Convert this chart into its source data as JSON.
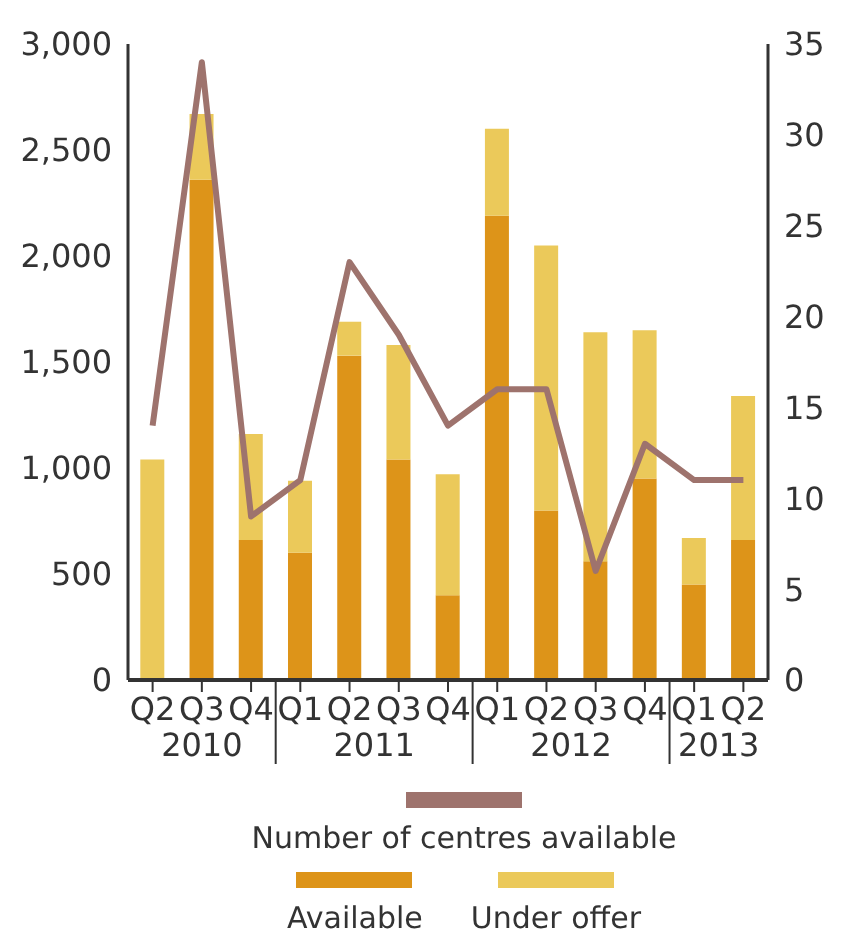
{
  "chart_data": {
    "type": "bar",
    "stacked": true,
    "categories": [
      "Q2",
      "Q3",
      "Q4",
      "Q1",
      "Q2",
      "Q3",
      "Q4",
      "Q1",
      "Q2",
      "Q3",
      "Q4",
      "Q1",
      "Q2"
    ],
    "series": [
      {
        "name": "Number of centres available",
        "type": "line",
        "axis": "y2",
        "color": "#9e736d",
        "values": [
          14,
          34,
          9,
          11,
          23,
          19,
          14,
          16,
          16,
          6,
          13,
          11,
          11
        ]
      },
      {
        "name": "Available",
        "color": "#dd9419",
        "values": [
          0,
          2360,
          660,
          600,
          1530,
          1040,
          400,
          2190,
          800,
          560,
          950,
          450,
          660
        ]
      },
      {
        "name": "Under offer",
        "color": "#ebc95a",
        "values": [
          1040,
          310,
          500,
          340,
          160,
          540,
          570,
          410,
          1250,
          1080,
          700,
          220,
          680
        ]
      }
    ],
    "ylim": [
      0,
      3000
    ],
    "yticks": [
      {
        "value": 0,
        "label": "0"
      },
      {
        "value": 500,
        "label": "500"
      },
      {
        "value": 1000,
        "label": "1,000"
      },
      {
        "value": 1500,
        "label": "1,500"
      },
      {
        "value": 2000,
        "label": "2,000"
      },
      {
        "value": 2500,
        "label": "2,500"
      },
      {
        "value": 3000,
        "label": "3,000"
      }
    ],
    "y2lim": [
      0,
      35
    ],
    "y2ticks": [
      0,
      5,
      10,
      15,
      20,
      25,
      30,
      35
    ],
    "annotations": [
      "2010",
      "2011",
      "2012",
      "2013"
    ],
    "grid": false,
    "legend": "bottom",
    "marker": "none",
    "line_style": "solid"
  }
}
